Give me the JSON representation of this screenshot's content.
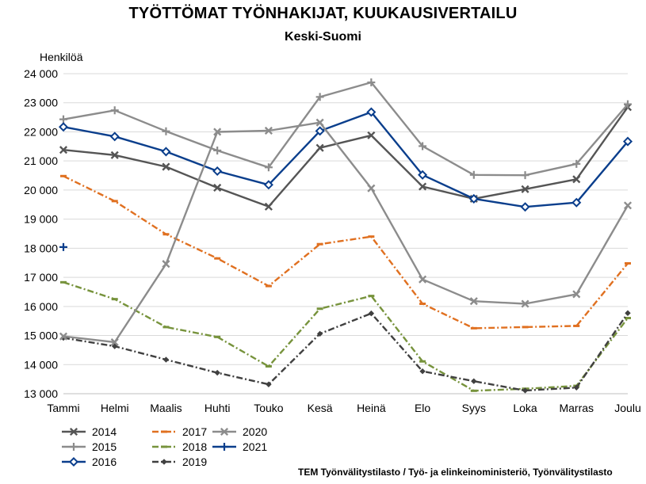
{
  "chart_data": {
    "type": "line",
    "title": "TYÖTTÖMAT TYÖNHAKIJAT, KUUKAUSIVERTAILU",
    "subtitle": "Keski-Suomi",
    "ylabel": "Henkilöä",
    "xlabel": "",
    "source": "TEM Työnvälitystilasto / Työ- ja elinkeinoministeriö, Työnvälitystilasto",
    "categories": [
      "Tammi",
      "Helmi",
      "Maalis",
      "Huhti",
      "Touko",
      "Kesä",
      "Heinä",
      "Elo",
      "Syys",
      "Loka",
      "Marras",
      "Joulu"
    ],
    "ylim": [
      13000,
      24000
    ],
    "yticks": [
      13000,
      14000,
      15000,
      16000,
      17000,
      18000,
      19000,
      20000,
      21000,
      22000,
      23000,
      24000
    ],
    "ytick_labels": [
      "13 000",
      "14 000",
      "15 000",
      "16 000",
      "17 000",
      "18 000",
      "19 000",
      "20 000",
      "21 000",
      "22 000",
      "23 000",
      "24 000"
    ],
    "grid": true,
    "legend_position": "bottom-left",
    "series": [
      {
        "name": "2014",
        "color": "#555555",
        "marker": "x",
        "dash": "none",
        "values": [
          21380,
          21200,
          20800,
          20080,
          19430,
          21450,
          21880,
          20120,
          19700,
          20030,
          20370,
          22850
        ]
      },
      {
        "name": "2015",
        "color": "#8c8c8c",
        "marker": "plus",
        "dash": "none",
        "values": [
          22430,
          22740,
          22020,
          21360,
          20780,
          23200,
          23700,
          21510,
          20520,
          20510,
          20900,
          22950
        ]
      },
      {
        "name": "2016",
        "color": "#0a3e8c",
        "marker": "diamond",
        "dash": "none",
        "values": [
          22170,
          21840,
          21320,
          20650,
          20180,
          22030,
          22680,
          20520,
          19700,
          19420,
          19570,
          21670
        ]
      },
      {
        "name": "2017",
        "color": "#e07020",
        "marker": "dash",
        "dash": "8 3 2 3",
        "values": [
          20480,
          19620,
          18480,
          17650,
          16700,
          18140,
          18400,
          16090,
          15250,
          15290,
          15330,
          17480
        ]
      },
      {
        "name": "2018",
        "color": "#77933c",
        "marker": "dash",
        "dash": "8 3 2 3",
        "values": [
          16830,
          16250,
          15290,
          14950,
          13940,
          15920,
          16360,
          14110,
          13100,
          13170,
          13270,
          15600
        ]
      },
      {
        "name": "2019",
        "color": "#404040",
        "marker": "dot",
        "dash": "8 3 2 3",
        "values": [
          14920,
          14630,
          14170,
          13720,
          13320,
          15060,
          15760,
          13770,
          13430,
          13110,
          13210,
          15770
        ]
      },
      {
        "name": "2020",
        "color": "#8c8c8c",
        "marker": "x",
        "dash": "none",
        "values": [
          14970,
          14770,
          17460,
          22000,
          22040,
          22320,
          20060,
          16930,
          16180,
          16090,
          16420,
          19470
        ]
      },
      {
        "name": "2021",
        "color": "#0a3e8c",
        "marker": "plus",
        "dash": "none",
        "values": [
          18040,
          null,
          null,
          null,
          null,
          null,
          null,
          null,
          null,
          null,
          null,
          null
        ]
      }
    ]
  }
}
